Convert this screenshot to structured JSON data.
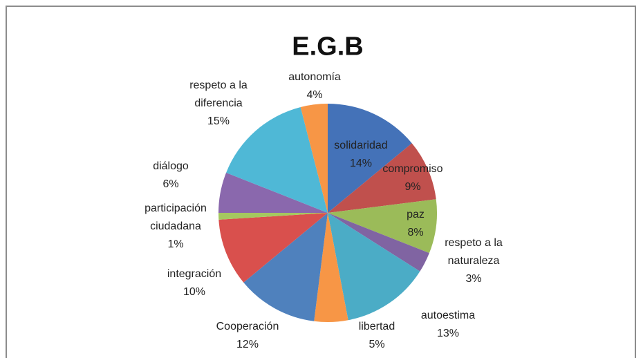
{
  "chart_data": {
    "type": "pie",
    "title": "E.G.B",
    "categories": [
      "solidaridad",
      "compromiso",
      "paz",
      "respeto a la naturaleza",
      "autoestima",
      "libertad",
      "Cooperación",
      "integración",
      "participación ciudadana",
      "diálogo",
      "respeto a la diferencia",
      "autonomía"
    ],
    "values": [
      14,
      9,
      8,
      3,
      13,
      5,
      12,
      10,
      1,
      6,
      15,
      4
    ],
    "value_labels": [
      "14%",
      "9%",
      "8%",
      "3%",
      "13%",
      "5%",
      "12%",
      "10%",
      "1%",
      "6%",
      "15%",
      "4%"
    ],
    "colors": [
      "#4472b8",
      "#c0504d",
      "#9bbb59",
      "#8064a2",
      "#4bacc6",
      "#f79646",
      "#4f81bd",
      "#d9504d",
      "#a5c85f",
      "#8a68ad",
      "#4fb8d6",
      "#f79646"
    ]
  }
}
